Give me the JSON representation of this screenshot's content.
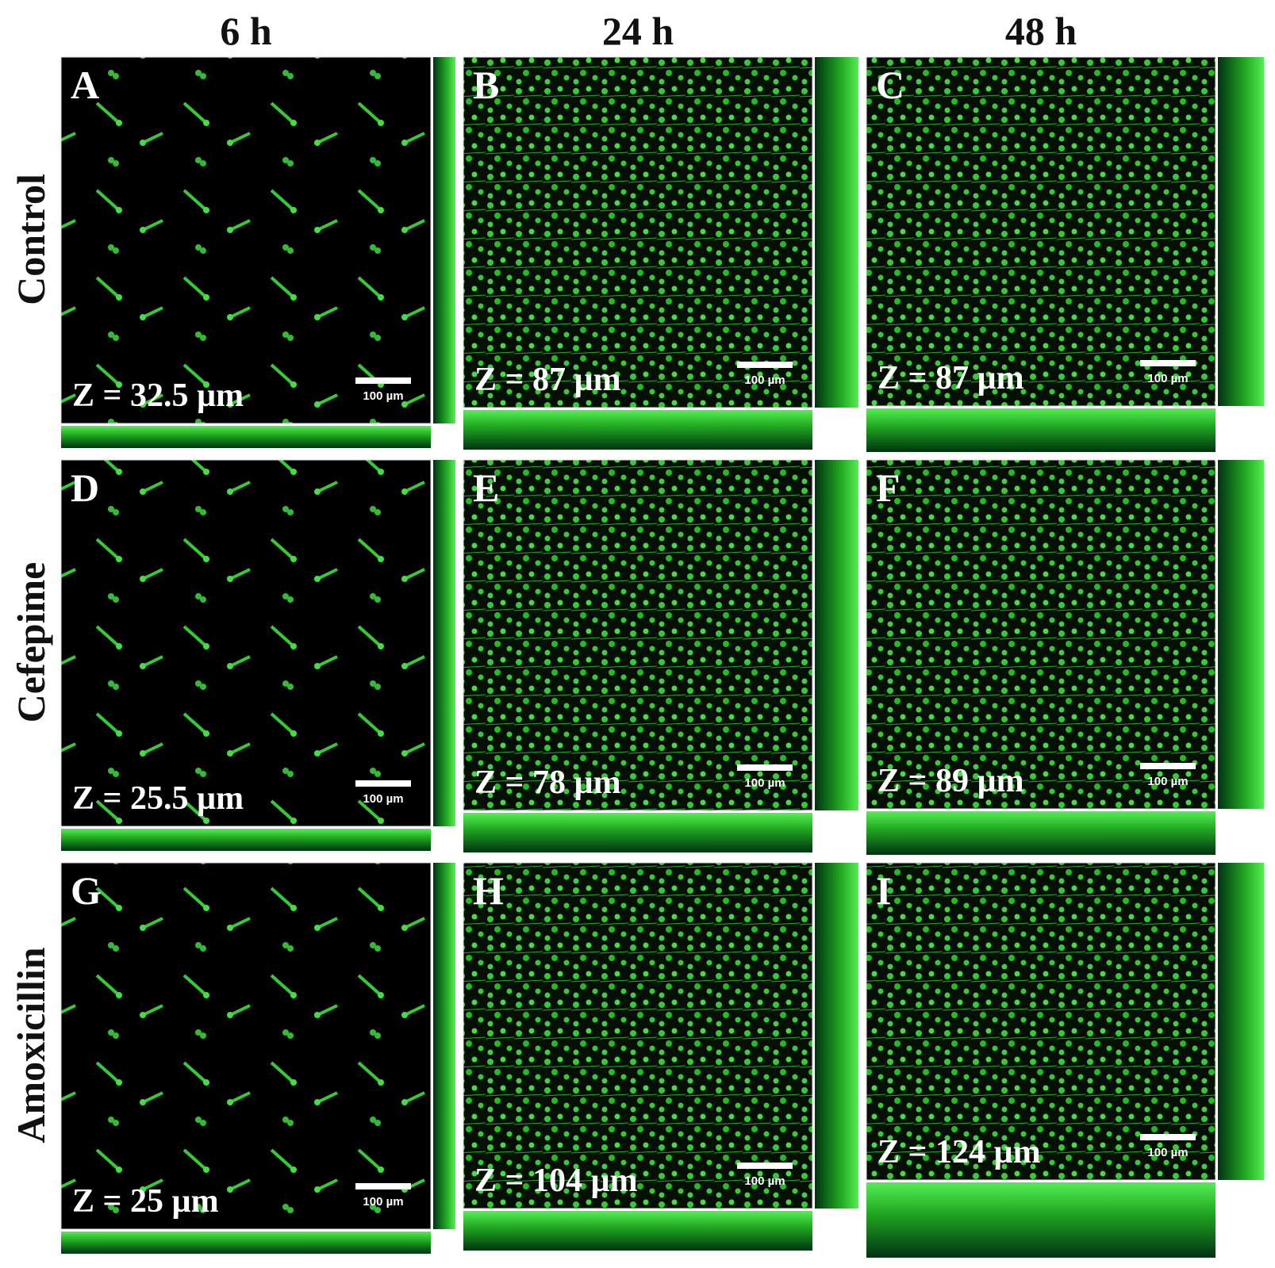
{
  "columns": [
    "6 h",
    "24 h",
    "48 h"
  ],
  "rows": [
    "Control",
    "Cefepime",
    "Amoxicillin"
  ],
  "panels": [
    {
      "letter": "A",
      "z": "Z = 32.5 µm",
      "scale_bar": "100 µm"
    },
    {
      "letter": "B",
      "z": "Z = 87 µm",
      "scale_bar": "100 µm"
    },
    {
      "letter": "C",
      "z": "Z = 87 µm",
      "scale_bar": "100 µm"
    },
    {
      "letter": "D",
      "z": "Z = 25.5 µm",
      "scale_bar": "100 µm"
    },
    {
      "letter": "E",
      "z": "Z = 78 µm",
      "scale_bar": "100 µm"
    },
    {
      "letter": "F",
      "z": "Z = 89 µm",
      "scale_bar": "100 µm"
    },
    {
      "letter": "G",
      "z": "Z = 25 µm",
      "scale_bar": "100 µm"
    },
    {
      "letter": "H",
      "z": "Z = 104 µm",
      "scale_bar": "100 µm"
    },
    {
      "letter": "I",
      "z": "Z = 124 µm",
      "scale_bar": "100 µm"
    }
  ]
}
